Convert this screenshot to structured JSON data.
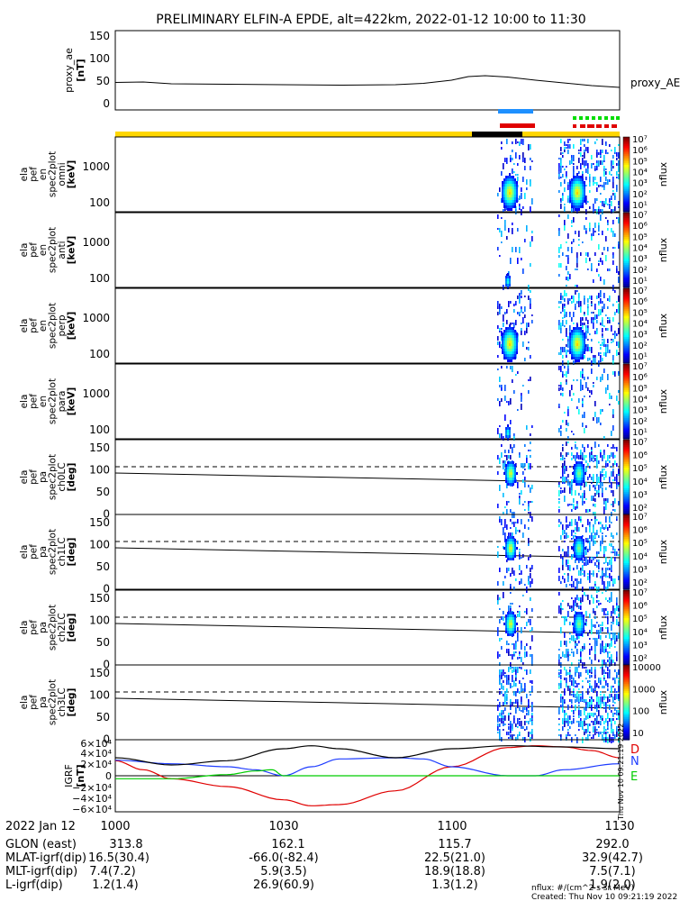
{
  "title": "PRELIMINARY ELFIN-A EPDE, alt=422km, 2022-01-12 10:00 to 11:30",
  "panels": {
    "proxy": {
      "ylabel": [
        "proxy_ae",
        "[nT]"
      ],
      "ticks": [
        "150",
        "100",
        "50",
        "0"
      ],
      "legend": "proxy_AE"
    },
    "spec_en": [
      {
        "ylabel": [
          "ela",
          "pef",
          "en",
          "spec2plot",
          "omni",
          "[keV]"
        ]
      },
      {
        "ylabel": [
          "ela",
          "pef",
          "en",
          "spec2plot",
          "anti",
          "[keV]"
        ]
      },
      {
        "ylabel": [
          "ela",
          "pef",
          "en",
          "spec2plot",
          "perp",
          "[keV]"
        ]
      },
      {
        "ylabel": [
          "ela",
          "pef",
          "en",
          "spec2plot",
          "para",
          "[keV]"
        ]
      }
    ],
    "en_ticks": [
      "1000",
      "100"
    ],
    "spec_pa": [
      {
        "ylabel": [
          "ela",
          "pef",
          "pa",
          "spec2plot",
          "ch0LC",
          "[deg]"
        ]
      },
      {
        "ylabel": [
          "ela",
          "pef",
          "pa",
          "spec2plot",
          "ch1LC",
          "[deg]"
        ]
      },
      {
        "ylabel": [
          "ela",
          "pef",
          "pa",
          "spec2plot",
          "ch2LC",
          "[deg]"
        ]
      },
      {
        "ylabel": [
          "ela",
          "pef",
          "pa",
          "spec2plot",
          "ch3LC",
          "[deg]"
        ]
      }
    ],
    "pa_ticks": [
      "150",
      "100",
      "50",
      "0"
    ],
    "igrf": {
      "ylabel": [
        "IGRF",
        "[nT]"
      ],
      "ticks": [
        "6×10⁴",
        "4×10⁴",
        "2×10⁴",
        "0",
        "−2×10⁴",
        "−4×10⁴",
        "−6×10⁴"
      ],
      "legend": [
        "D",
        "N",
        "E"
      ]
    }
  },
  "colorbar_label": "nflux",
  "colorbar_ticks_log": [
    "10⁷",
    "10⁶",
    "10⁵",
    "10⁴",
    "10³",
    "10²",
    "10¹"
  ],
  "colorbar_ticks_pa3": [
    "10000",
    "1000",
    "100",
    "10"
  ],
  "xaxis": {
    "row_labels": [
      "2022 Jan 12",
      "GLON (east)",
      "MLAT-igrf(dip)",
      "MLT-igrf(dip)",
      "L-igrf(dip)"
    ],
    "columns": [
      {
        "time": "1000",
        "glon": "313.8",
        "mlat": "16.5(30.4)",
        "mlt": "7.4(7.2)",
        "l": "1.2(1.4)"
      },
      {
        "time": "1030",
        "glon": "162.1",
        "mlat": "-66.0(-82.4)",
        "mlt": "5.9(3.5)",
        "l": "26.9(60.9)"
      },
      {
        "time": "1100",
        "glon": "115.7",
        "mlat": "22.5(21.0)",
        "mlt": "18.9(18.8)",
        "l": "1.3(1.2)"
      },
      {
        "time": "1130",
        "glon": "292.0",
        "mlat": "32.9(42.7)",
        "mlt": "7.5(7.1)",
        "l": "1.9(2.0)"
      }
    ]
  },
  "footer": {
    "units": "nflux: #/(cm^2 s sr MeV)",
    "created": "Created: Thu Nov 10 09:21:19 2022"
  },
  "side_stamp": "Thu Nov 10 09:21:19 2022",
  "colors": {
    "bar_yellow": "#ffd700",
    "bar_black": "#000000",
    "blue_marker": "#1e90ff",
    "red_marker": "#e00000",
    "green_marker": "#00dd00",
    "igrf_D": "#e00000",
    "igrf_N": "#1e3cff",
    "igrf_E": "#00cc00"
  },
  "chart_data": {
    "type": "line",
    "x_time_range": [
      "10:00",
      "11:30"
    ],
    "proxy_ae": {
      "ylim": [
        0,
        150
      ],
      "x_min": [
        0,
        5,
        10,
        20,
        30,
        40,
        50,
        55,
        60,
        63,
        66,
        70,
        75,
        80,
        85,
        90
      ],
      "values": [
        55,
        56,
        52,
        51,
        50,
        49,
        50,
        53,
        60,
        68,
        70,
        67,
        60,
        54,
        48,
        44
      ]
    },
    "spec_energy_ylim_keV": [
      50,
      7000
    ],
    "pitch_angle_ylim_deg": [
      0,
      180
    ],
    "igrf": {
      "ylim": [
        -60000,
        60000
      ],
      "series": [
        {
          "name": "D",
          "x_min": [
            0,
            5,
            10,
            20,
            30,
            35,
            40,
            50,
            60,
            70,
            75,
            80,
            85,
            90
          ],
          "values": [
            25000,
            10000,
            -5000,
            -18000,
            -40000,
            -50000,
            -48000,
            -25000,
            15000,
            47000,
            50000,
            48000,
            42000,
            30000
          ]
        },
        {
          "name": "N",
          "x_min": [
            0,
            10,
            20,
            25,
            30,
            35,
            40,
            50,
            55,
            60,
            70,
            75,
            80,
            90
          ],
          "values": [
            26000,
            20000,
            15000,
            10000,
            0,
            15000,
            28000,
            30000,
            28000,
            15000,
            0,
            0,
            10000,
            20000
          ]
        },
        {
          "name": "E",
          "x_min": [
            0,
            10,
            20,
            25,
            28,
            30,
            40,
            60,
            90
          ],
          "values": [
            -5000,
            -5000,
            2000,
            8000,
            10000,
            0,
            0,
            0,
            0
          ]
        },
        {
          "name": "",
          "x_min": [
            0,
            10,
            20,
            30,
            35,
            40,
            50,
            60,
            70,
            80,
            90
          ],
          "values": [
            30000,
            18000,
            25000,
            45000,
            50000,
            45000,
            30000,
            45000,
            50000,
            48000,
            45000
          ]
        }
      ]
    }
  }
}
